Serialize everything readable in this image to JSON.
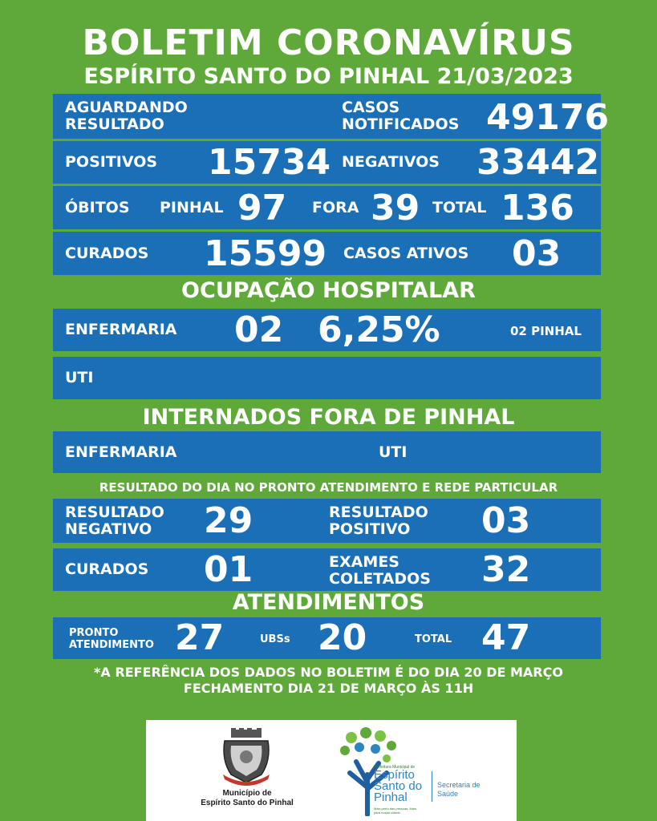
{
  "header": {
    "title": "BOLETIM CORONAVÍRUS",
    "subtitle": "ESPÍRITO SANTO DO PINHAL 21/03/2023"
  },
  "row1": {
    "aguardando_line1": "AGUARDANDO",
    "aguardando_line2": "RESULTADO",
    "casos_line1": "CASOS",
    "casos_line2": "NOTIFICADOS",
    "casos_value": "49176"
  },
  "row2": {
    "positivos_label": "POSITIVOS",
    "positivos_value": "15734",
    "negativos_label": "NEGATIVOS",
    "negativos_value": "33442"
  },
  "row3": {
    "obitos_label": "ÓBITOS",
    "pinhal_label": "PINHAL",
    "pinhal_value": "97",
    "fora_label": "FORA",
    "fora_value": "39",
    "total_label": "TOTAL",
    "total_value": "136"
  },
  "row4": {
    "curados_label": "CURADOS",
    "curados_value": "15599",
    "ativos_label": "CASOS ATIVOS",
    "ativos_value": "03"
  },
  "ocupacao": {
    "heading": "OCUPAÇÃO HOSPITALAR",
    "enfermaria_label": "ENFERMARIA",
    "enfermaria_value": "02",
    "enfermaria_percent": "6,25%",
    "enfermaria_note": "02 PINHAL",
    "uti_label": "UTI"
  },
  "internados": {
    "heading": "INTERNADOS FORA DE PINHAL",
    "enfermaria_label": "ENFERMARIA",
    "uti_label": "UTI"
  },
  "resultado_dia": {
    "heading": "RESULTADO DO DIA NO PRONTO ATENDIMENTO E REDE PARTICULAR",
    "neg_line1": "RESULTADO",
    "neg_line2": "NEGATIVO",
    "neg_value": "29",
    "pos_line1": "RESULTADO",
    "pos_line2": "POSITIVO",
    "pos_value": "03",
    "curados_label": "CURADOS",
    "curados_value": "01",
    "exames_line1": "EXAMES",
    "exames_line2": "COLETADOS",
    "exames_value": "32"
  },
  "atendimentos": {
    "heading": "ATENDIMENTOS",
    "pronto_line1": "PRONTO",
    "pronto_line2": "ATENDIMENTO",
    "pronto_value": "27",
    "ubs_label": "UBSs",
    "ubs_value": "20",
    "total_label": "TOTAL",
    "total_value": "47"
  },
  "notes": {
    "line1": "*A REFERÊNCIA DOS DADOS NO BOLETIM É DO DIA 20 DE MARÇO",
    "line2": "FECHAMENTO DIA 21 DE MARÇO ÀS 11H"
  },
  "footer": {
    "municipio_line1": "Município de",
    "municipio_line2": "Espírito Santo do Pinhal",
    "logo_small": "Prefeitura Municipal de",
    "logo_line1": "Espírito",
    "logo_line2": "Santo do",
    "logo_line3": "Pinhal",
    "logo_tagline": "Mais perto das pessoas. Mais para nossa cidade.",
    "secretaria_line1": "Secretaria de",
    "secretaria_line2": "Saúde"
  },
  "colors": {
    "background": "#5fa83a",
    "panel": "#1a6fb7",
    "text": "#ffffff"
  }
}
